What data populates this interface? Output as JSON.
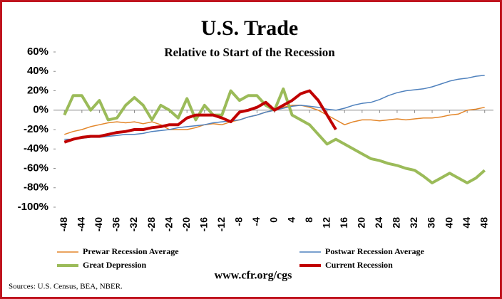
{
  "chart_data": {
    "type": "line",
    "title": "U.S. Trade",
    "subtitle": "Relative to Start of the Recession",
    "url": "www.cfr.org/cgs",
    "source": "Sources: U.S. Census,  BEA, NBER.",
    "x": [
      -48,
      -46,
      -44,
      -42,
      -40,
      -38,
      -36,
      -34,
      -32,
      -30,
      -28,
      -26,
      -24,
      -22,
      -20,
      -18,
      -16,
      -14,
      -12,
      -10,
      -8,
      -6,
      -4,
      -2,
      0,
      2,
      4,
      6,
      8,
      10,
      12,
      14,
      16,
      18,
      20,
      22,
      24,
      26,
      28,
      30,
      32,
      34,
      36,
      38,
      40,
      42,
      44,
      46,
      48
    ],
    "xlim": [
      -50,
      50
    ],
    "xticks": [
      -48,
      -44,
      -40,
      -36,
      -32,
      -28,
      -24,
      -20,
      -16,
      -12,
      -8,
      -4,
      0,
      4,
      8,
      12,
      16,
      20,
      24,
      28,
      32,
      36,
      40,
      44,
      48
    ],
    "ylim": [
      -100,
      60
    ],
    "yticks": [
      {
        "value": 60,
        "label": "60%"
      },
      {
        "value": 40,
        "label": "40%"
      },
      {
        "value": 20,
        "label": "20%"
      },
      {
        "value": 0,
        "label": "0%"
      },
      {
        "value": -20,
        "label": "-20%"
      },
      {
        "value": -40,
        "label": "-40%"
      },
      {
        "value": -60,
        "label": "-60%"
      },
      {
        "value": -80,
        "label": "-80%"
      },
      {
        "value": -100,
        "label": "-100%"
      }
    ],
    "grid": false,
    "series": [
      {
        "name": "Prewar Recession Average",
        "color": "#e3862a",
        "width": 1.5,
        "values": [
          -25,
          -22,
          -20,
          -17,
          -15,
          -13,
          -12,
          -13,
          -12,
          -14,
          -12,
          -15,
          -20,
          -20,
          -20,
          -18,
          -15,
          -14,
          -15,
          -12,
          -10,
          -7,
          -5,
          -2,
          0,
          3,
          5,
          5,
          3,
          0,
          -5,
          -10,
          -15,
          -12,
          -10,
          -10,
          -11,
          -10,
          -9,
          -10,
          -9,
          -8,
          -8,
          -7,
          -5,
          -4,
          0,
          1,
          3
        ]
      },
      {
        "name": "Postwar Recession Average",
        "color": "#4f81bd",
        "width": 1.5,
        "values": [
          -30,
          -30,
          -29,
          -28,
          -28,
          -27,
          -26,
          -25,
          -25,
          -24,
          -22,
          -21,
          -20,
          -18,
          -17,
          -16,
          -15,
          -13,
          -12,
          -11,
          -10,
          -7,
          -5,
          -2,
          0,
          2,
          4,
          5,
          4,
          3,
          1,
          0,
          2,
          5,
          7,
          8,
          11,
          15,
          18,
          20,
          21,
          22,
          24,
          27,
          30,
          32,
          33,
          35,
          36
        ]
      },
      {
        "name": "Great Depression",
        "color": "#9bbb59",
        "width": 4,
        "values": [
          -5,
          15,
          15,
          0,
          10,
          -10,
          -8,
          5,
          13,
          5,
          -10,
          5,
          0,
          -8,
          12,
          -10,
          5,
          -5,
          -5,
          20,
          10,
          15,
          15,
          5,
          0,
          22,
          -5,
          -10,
          -15,
          -25,
          -35,
          -30,
          -35,
          -40,
          -45,
          -50,
          -52,
          -55,
          -57,
          -60,
          -62,
          -68,
          -75,
          -70,
          -65,
          -70,
          -75,
          -70,
          -62
        ]
      },
      {
        "name": "Current Recession",
        "color": "#c00000",
        "width": 4,
        "values": [
          -33,
          -30,
          -28,
          -27,
          -27,
          -25,
          -23,
          -22,
          -20,
          -20,
          -18,
          -17,
          -15,
          -15,
          -8,
          -5,
          -5,
          -5,
          -8,
          -12,
          -2,
          0,
          3,
          8,
          0,
          5,
          10,
          17,
          20,
          10,
          -5,
          -20,
          null,
          null,
          null,
          null,
          null,
          null,
          null,
          null,
          null,
          null,
          null,
          null,
          null,
          null,
          null,
          null,
          null
        ]
      }
    ]
  }
}
